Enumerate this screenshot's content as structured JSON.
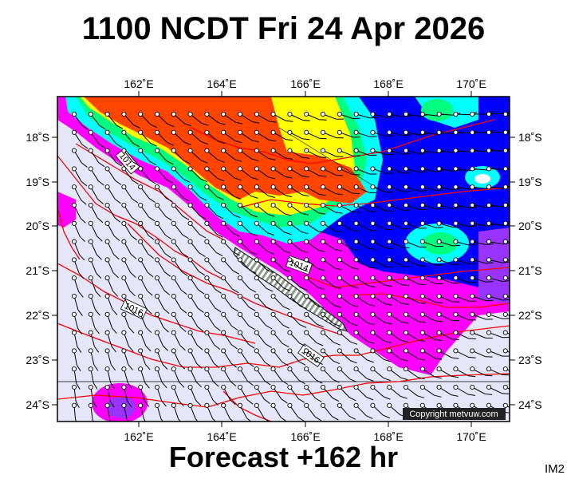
{
  "header": {
    "title": "1100 NCDT Fri 24 Apr 2026"
  },
  "footer": {
    "forecast": "Forecast +162 hr"
  },
  "corner_code": "IM2",
  "copyright": "Copyright metvuw.com",
  "axes": {
    "lon_labels": [
      "162˚E",
      "164˚E",
      "166˚E",
      "168˚E",
      "170˚E"
    ],
    "lat_labels": [
      "18˚S",
      "19˚S",
      "20˚S",
      "21˚S",
      "22˚S",
      "23˚S",
      "24˚S"
    ]
  },
  "isobars": [
    {
      "label": "1014"
    },
    {
      "label": "1014"
    },
    {
      "label": "1016"
    },
    {
      "label": "1016"
    }
  ],
  "colors": {
    "background_fill": "#e6e6fa",
    "rain_heavy": "#ff4500",
    "rain_mid": "#ffff00",
    "rain_light": "#00ff7f",
    "rain_cyan": "#00ffff",
    "rain_blue": "#0000ff",
    "rain_magenta": "#ff00ff",
    "isobar": "#ff0000"
  }
}
